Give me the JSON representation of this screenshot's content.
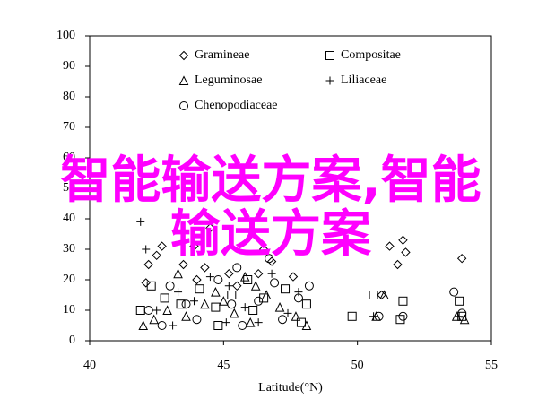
{
  "chart_data": {
    "type": "scatter",
    "x_label": "Latitude(°N)",
    "xlim": [
      40,
      55
    ],
    "xticks": [
      40,
      45,
      50,
      55
    ],
    "ylim": [
      0,
      100
    ],
    "yticks": [
      0,
      10,
      20,
      30,
      40,
      50,
      60,
      70,
      80,
      90,
      100
    ],
    "series": [
      {
        "name": "Gramineae",
        "marker": "diamond",
        "color": "#000000",
        "x": [
          42.1,
          42.2,
          42.5,
          43.5,
          44.0,
          44.3,
          45.2,
          45.5,
          46.3,
          46.8,
          47.6,
          51.7,
          51.5,
          51.8,
          53.9,
          42.7,
          43.9,
          44.5,
          46.5,
          51.2,
          50.9
        ],
        "values": [
          19,
          25,
          28,
          25,
          20,
          24,
          22,
          18,
          22,
          26,
          21,
          33,
          25,
          29,
          27,
          31,
          31,
          37,
          30,
          31,
          15
        ]
      },
      {
        "name": "Compositae",
        "marker": "square",
        "color": "#000000",
        "x": [
          41.9,
          42.3,
          42.8,
          43.4,
          44.1,
          44.7,
          45.3,
          45.9,
          46.5,
          47.3,
          48.1,
          50.6,
          51.7,
          53.8,
          53.9,
          51.6,
          44.8,
          46.1,
          47.9,
          49.8
        ],
        "values": [
          10,
          18,
          14,
          12,
          17,
          11,
          15,
          20,
          14,
          17,
          12,
          15,
          13,
          13,
          8,
          7,
          5,
          10,
          6,
          8
        ]
      },
      {
        "name": "Leguminosae",
        "marker": "triangle",
        "color": "#000000",
        "x": [
          42.0,
          42.4,
          42.9,
          43.6,
          44.3,
          44.7,
          45.0,
          45.4,
          46.0,
          46.6,
          47.1,
          47.7,
          48.1,
          50.7,
          51.0,
          53.7,
          54.0,
          45.8,
          46.2,
          43.3
        ],
        "values": [
          5,
          7,
          10,
          8,
          12,
          16,
          13,
          9,
          6,
          15,
          11,
          8,
          5,
          8,
          15,
          8,
          7,
          21,
          18,
          22
        ]
      },
      {
        "name": "Liliaceae",
        "marker": "plus",
        "color": "#000000",
        "x": [
          41.9,
          42.1,
          42.5,
          43.3,
          43.9,
          44.5,
          45.2,
          45.8,
          46.3,
          46.8,
          47.4,
          47.8,
          50.6,
          53.8,
          45.1,
          43.1
        ],
        "values": [
          39,
          30,
          10,
          16,
          13,
          21,
          18,
          11,
          6,
          22,
          9,
          16,
          8,
          8,
          6,
          5
        ]
      },
      {
        "name": "Chenopodiaceae",
        "marker": "circle",
        "color": "#000000",
        "x": [
          42.2,
          42.7,
          43.0,
          43.6,
          44.0,
          44.8,
          45.3,
          45.7,
          46.3,
          46.9,
          47.2,
          47.8,
          48.2,
          50.8,
          51.7,
          53.6,
          53.9,
          45.5,
          46.7
        ],
        "values": [
          10,
          5,
          18,
          12,
          7,
          20,
          12,
          5,
          13,
          19,
          7,
          14,
          18,
          8,
          8,
          16,
          9,
          24,
          27
        ]
      }
    ],
    "watermark_lines": [
      "智能输送方案,智能",
      "输送方案"
    ]
  }
}
